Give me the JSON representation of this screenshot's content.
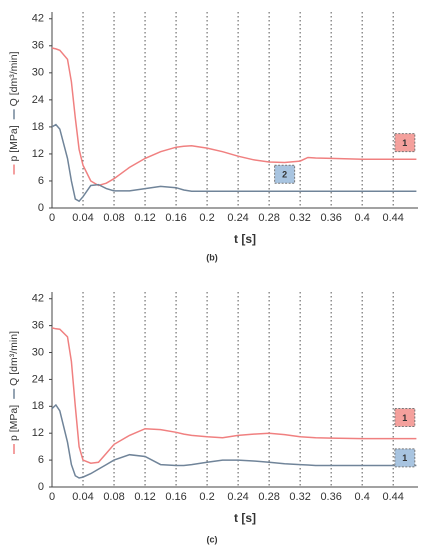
{
  "chart_data": [
    {
      "type": "line",
      "caption": "(b)",
      "xlabel": "t [s]",
      "x": [
        0,
        0.005,
        0.01,
        0.02,
        0.025,
        0.03,
        0.035,
        0.04,
        0.05,
        0.06,
        0.07,
        0.08,
        0.1,
        0.12,
        0.14,
        0.16,
        0.17,
        0.18,
        0.2,
        0.22,
        0.24,
        0.26,
        0.28,
        0.3,
        0.32,
        0.33,
        0.34,
        0.36,
        0.4,
        0.44,
        0.47
      ],
      "series": [
        {
          "name": "p [MPa]",
          "color": "#f08080",
          "values": [
            35.5,
            35.3,
            35,
            33,
            28,
            20,
            13,
            9.5,
            6,
            5,
            5.5,
            6.5,
            9,
            11,
            12.5,
            13.5,
            13.7,
            13.8,
            13.3,
            12.5,
            11.5,
            10.7,
            10.2,
            10.1,
            10.4,
            11.2,
            11.1,
            11,
            10.8,
            10.8,
            10.8
          ]
        },
        {
          "name": "Q [dm³/min]",
          "color": "#708499",
          "values": [
            18,
            18.5,
            17.5,
            11,
            6,
            2,
            1.5,
            2.5,
            5,
            5.2,
            4.3,
            3.8,
            3.8,
            4.3,
            4.8,
            4.5,
            4,
            3.7,
            3.7,
            3.7,
            3.7,
            3.7,
            3.7,
            3.7,
            3.7,
            3.7,
            3.7,
            3.7,
            3.7,
            3.7,
            3.7
          ]
        }
      ],
      "xlim": [
        0,
        0.472
      ],
      "xticks": [
        0,
        0.04,
        0.08,
        0.12,
        0.16,
        0.2,
        0.24,
        0.28,
        0.32,
        0.36,
        0.4,
        0.44
      ],
      "ylim": [
        0,
        43.5
      ],
      "yticks": [
        0,
        6,
        12,
        18,
        24,
        30,
        36,
        42
      ],
      "grid": "x",
      "annotations": [
        {
          "text": "1",
          "x": 0.455,
          "y": 14.5,
          "color": "#f4a09c"
        },
        {
          "text": "2",
          "x": 0.3,
          "y": 7.5,
          "color": "#a8c4e0"
        }
      ]
    },
    {
      "type": "line",
      "caption": "(c)",
      "xlabel": "t [s]",
      "x": [
        0,
        0.005,
        0.01,
        0.02,
        0.025,
        0.03,
        0.035,
        0.04,
        0.05,
        0.06,
        0.07,
        0.08,
        0.1,
        0.12,
        0.14,
        0.16,
        0.17,
        0.18,
        0.2,
        0.22,
        0.24,
        0.26,
        0.28,
        0.3,
        0.32,
        0.33,
        0.34,
        0.36,
        0.4,
        0.44,
        0.47
      ],
      "series": [
        {
          "name": "p [MPa]",
          "color": "#f08080",
          "values": [
            35.5,
            35.3,
            35.2,
            33.5,
            28,
            18,
            9,
            6,
            5.3,
            5.5,
            7.5,
            9.5,
            11.5,
            13,
            12.8,
            12.2,
            11.8,
            11.5,
            11.2,
            11,
            11.5,
            11.8,
            12,
            11.7,
            11.2,
            11.1,
            11,
            10.9,
            10.8,
            10.8,
            10.8
          ]
        },
        {
          "name": "Q [dm³/min]",
          "color": "#708499",
          "values": [
            17.5,
            18.3,
            17,
            10,
            5,
            2.5,
            2,
            2.2,
            3,
            4,
            5,
            6,
            7.2,
            6.8,
            5,
            4.8,
            4.8,
            5,
            5.5,
            6,
            6,
            5.8,
            5.5,
            5.2,
            5,
            4.9,
            4.8,
            4.8,
            4.8,
            4.8,
            4.8
          ]
        }
      ],
      "xlim": [
        0,
        0.472
      ],
      "xticks": [
        0,
        0.04,
        0.08,
        0.12,
        0.16,
        0.2,
        0.24,
        0.28,
        0.32,
        0.36,
        0.4,
        0.44
      ],
      "ylim": [
        0,
        43.5
      ],
      "yticks": [
        0,
        6,
        12,
        18,
        24,
        30,
        36,
        42
      ],
      "grid": "x",
      "annotations": [
        {
          "text": "1",
          "x": 0.455,
          "y": 15.5,
          "color": "#f4a09c"
        },
        {
          "text": "1",
          "x": 0.455,
          "y": 6.5,
          "color": "#a8c4e0"
        }
      ]
    }
  ]
}
